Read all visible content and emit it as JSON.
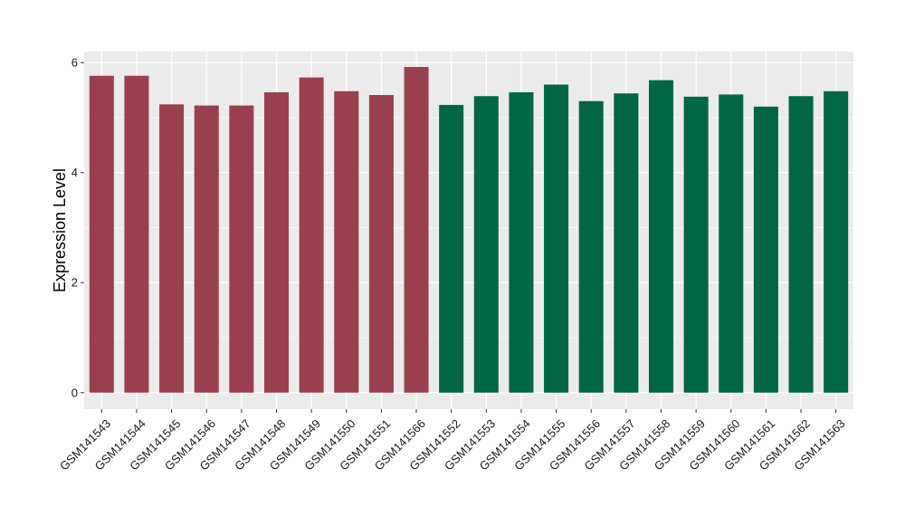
{
  "chart_data": {
    "type": "bar",
    "title": "",
    "xlabel": "",
    "ylabel": "Expression Level",
    "ylim": [
      -0.3,
      6.2
    ],
    "yticks": [
      0,
      2,
      4,
      6
    ],
    "grid": true,
    "legend": "none",
    "colors": {
      "panel": "#ebebeb",
      "gridline": "#ffffff",
      "group_a": "#9a3f4d",
      "group_b": "#006644"
    },
    "categories": [
      "GSM141543",
      "GSM141544",
      "GSM141545",
      "GSM141546",
      "GSM141547",
      "GSM141548",
      "GSM141549",
      "GSM141550",
      "GSM141551",
      "GSM141566",
      "GSM141552",
      "GSM141553",
      "GSM141554",
      "GSM141555",
      "GSM141556",
      "GSM141557",
      "GSM141558",
      "GSM141559",
      "GSM141560",
      "GSM141561",
      "GSM141562",
      "GSM141563"
    ],
    "values": [
      5.76,
      5.76,
      5.24,
      5.22,
      5.22,
      5.46,
      5.73,
      5.48,
      5.41,
      5.92,
      5.23,
      5.39,
      5.46,
      5.6,
      5.3,
      5.44,
      5.68,
      5.38,
      5.42,
      5.2,
      5.39,
      5.48
    ],
    "bar_groups": [
      "a",
      "a",
      "a",
      "a",
      "a",
      "a",
      "a",
      "a",
      "a",
      "a",
      "b",
      "b",
      "b",
      "b",
      "b",
      "b",
      "b",
      "b",
      "b",
      "b",
      "b",
      "b"
    ]
  }
}
